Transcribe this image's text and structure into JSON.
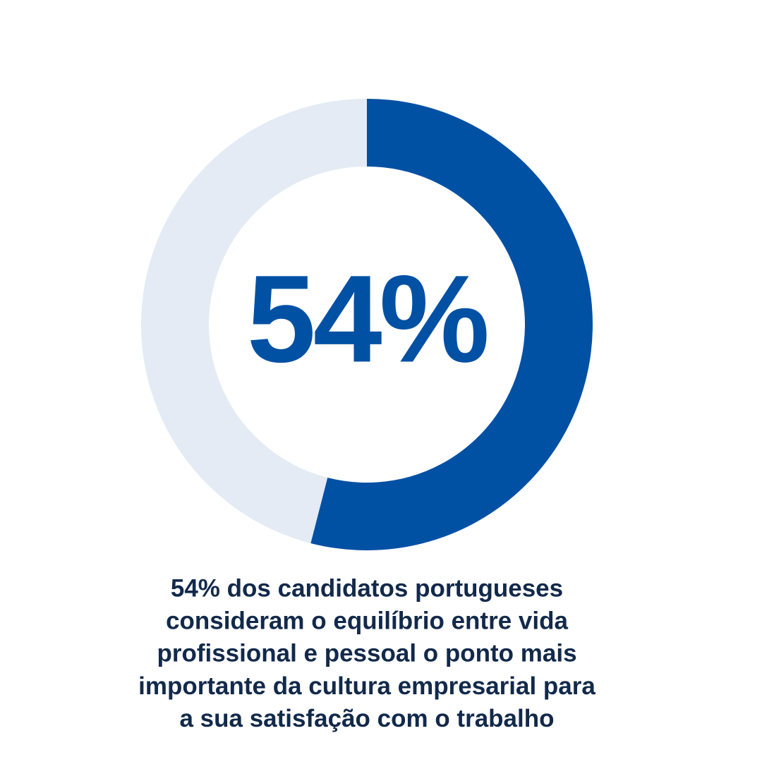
{
  "chart_data": {
    "type": "donut",
    "values": [
      54
    ],
    "value_labels": [
      "54%"
    ],
    "color": "#0050a4",
    "track_color": "#e4ebf4",
    "caption": [
      "54% dos candidatos portugueses",
      "consideram o equilíbrio entre vida",
      "profissional e pessoal o ponto mais",
      "importante da cultura empresarial para",
      "a sua satisfação com o trabalho"
    ]
  }
}
